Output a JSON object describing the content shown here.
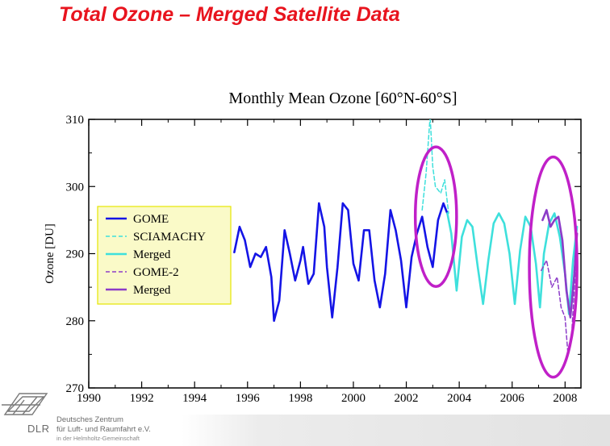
{
  "slide": {
    "title": "Total Ozone – Merged Satellite Data"
  },
  "logo": {
    "abbr": "DLR",
    "line1": "Deutsches Zentrum",
    "line2": "für Luft- und Raumfahrt e.V.",
    "line3": "in der Helmholtz-Gemeinschaft"
  },
  "colors": {
    "title_red": "#e8141e",
    "gome": "#1414e6",
    "sciamachy": "#3ee0dc",
    "gome2": "#8c3cc8",
    "highlight_ellipse": "#c020c8",
    "legend_bg": "#fafac8",
    "legend_border": "#e6e600"
  },
  "chart_data": {
    "type": "line",
    "title": "Monthly Mean Ozone [60°N-60°S]",
    "xlabel": "",
    "ylabel": "Ozone [DU]",
    "xlim": [
      1990,
      2008.6
    ],
    "ylim": [
      270,
      310
    ],
    "xticks": [
      "1990",
      "1992",
      "1994",
      "1996",
      "1998",
      "2000",
      "2002",
      "2004",
      "2006",
      "2008"
    ],
    "yticks": [
      "270",
      "280",
      "290",
      "300",
      "310"
    ],
    "legend_position": "left",
    "series": [
      {
        "name": "GOME",
        "style": "solid",
        "color": "#1414e6",
        "points": [
          [
            1995.5,
            290.2
          ],
          [
            1995.7,
            294.0
          ],
          [
            1995.9,
            292.0
          ],
          [
            1996.1,
            288.0
          ],
          [
            1996.3,
            290.0
          ],
          [
            1996.5,
            289.5
          ],
          [
            1996.7,
            291.0
          ],
          [
            1996.9,
            286.5
          ],
          [
            1997.0,
            280.0
          ],
          [
            1997.2,
            283.0
          ],
          [
            1997.4,
            293.5
          ],
          [
            1997.6,
            290.0
          ],
          [
            1997.8,
            286.0
          ],
          [
            1998.0,
            289.0
          ],
          [
            1998.1,
            291.0
          ],
          [
            1998.3,
            285.5
          ],
          [
            1998.5,
            287.0
          ],
          [
            1998.7,
            297.5
          ],
          [
            1998.9,
            294.0
          ],
          [
            1999.0,
            288.0
          ],
          [
            1999.2,
            280.5
          ],
          [
            1999.4,
            288.0
          ],
          [
            1999.6,
            297.5
          ],
          [
            1999.8,
            296.5
          ],
          [
            2000.0,
            288.5
          ],
          [
            2000.2,
            286.0
          ],
          [
            2000.4,
            293.5
          ],
          [
            2000.6,
            293.5
          ],
          [
            2000.8,
            286.0
          ],
          [
            2001.0,
            282.0
          ],
          [
            2001.2,
            287.0
          ],
          [
            2001.4,
            296.5
          ],
          [
            2001.6,
            293.5
          ],
          [
            2001.8,
            289.0
          ],
          [
            2002.0,
            282.0
          ],
          [
            2002.2,
            289.5
          ],
          [
            2002.4,
            293.0
          ],
          [
            2002.6,
            295.5
          ],
          [
            2002.8,
            291.0
          ],
          [
            2003.0,
            288.0
          ],
          [
            2003.2,
            295.0
          ],
          [
            2003.4,
            297.5
          ],
          [
            2003.55,
            296.0
          ]
        ]
      },
      {
        "name": "SCIAMACHY",
        "style": "dashed",
        "color": "#3ee0dc",
        "points": [
          [
            2002.6,
            296.5
          ],
          [
            2002.75,
            302.0
          ],
          [
            2002.9,
            310.5
          ],
          [
            2003.0,
            303.0
          ],
          [
            2003.1,
            300.0
          ],
          [
            2003.3,
            299.0
          ],
          [
            2003.45,
            301.0
          ],
          [
            2003.6,
            296.0
          ]
        ]
      },
      {
        "name": "Merged",
        "style": "solid",
        "color": "#3ee0dc",
        "points": [
          [
            2003.55,
            296.0
          ],
          [
            2003.7,
            293.0
          ],
          [
            2003.9,
            284.5
          ],
          [
            2004.1,
            292.5
          ],
          [
            2004.3,
            295.0
          ],
          [
            2004.5,
            294.0
          ],
          [
            2004.7,
            288.0
          ],
          [
            2004.9,
            282.5
          ],
          [
            2005.1,
            289.0
          ],
          [
            2005.3,
            294.5
          ],
          [
            2005.5,
            296.0
          ],
          [
            2005.7,
            294.5
          ],
          [
            2005.9,
            290.0
          ],
          [
            2006.1,
            282.5
          ],
          [
            2006.3,
            290.5
          ],
          [
            2006.5,
            295.5
          ],
          [
            2006.7,
            294.0
          ],
          [
            2006.9,
            288.5
          ],
          [
            2007.05,
            282.0
          ],
          [
            2007.2,
            290.0
          ],
          [
            2007.4,
            294.5
          ],
          [
            2007.6,
            296.0
          ],
          [
            2007.8,
            292.5
          ],
          [
            2008.0,
            287.0
          ],
          [
            2008.15,
            281.0
          ],
          [
            2008.3,
            289.0
          ],
          [
            2008.45,
            294.0
          ]
        ]
      },
      {
        "name": "GOME-2",
        "style": "dashed",
        "color": "#8c3cc8",
        "points": [
          [
            2007.1,
            287.5
          ],
          [
            2007.3,
            289.0
          ],
          [
            2007.5,
            285.0
          ],
          [
            2007.7,
            286.5
          ],
          [
            2007.85,
            282.0
          ],
          [
            2008.0,
            280.5
          ],
          [
            2008.1,
            275.5
          ],
          [
            2008.25,
            278.0
          ],
          [
            2008.4,
            288.0
          ]
        ]
      },
      {
        "name": "Merged",
        "style": "solid",
        "color": "#8c3cc8",
        "points": [
          [
            2007.15,
            295.0
          ],
          [
            2007.3,
            296.5
          ],
          [
            2007.45,
            294.0
          ],
          [
            2007.6,
            295.0
          ],
          [
            2007.75,
            295.5
          ],
          [
            2007.9,
            292.0
          ],
          [
            2008.05,
            284.5
          ],
          [
            2008.2,
            280.5
          ],
          [
            2008.35,
            287.0
          ],
          [
            2008.45,
            293.0
          ]
        ]
      }
    ],
    "annotations": [
      {
        "type": "ellipse",
        "cx": 2003.12,
        "cy": 295.5,
        "rx": 0.78,
        "ry": 10.4,
        "color": "#c020c8"
      },
      {
        "type": "ellipse",
        "cx": 2007.55,
        "cy": 288.0,
        "rx": 0.9,
        "ry": 16.4,
        "color": "#c020c8"
      }
    ]
  }
}
